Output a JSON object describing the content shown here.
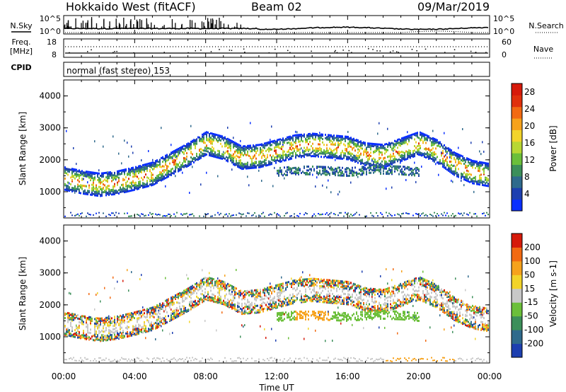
{
  "header": {
    "station": "Hokkaido West (fitACF)",
    "beam": "Beam 02",
    "date": "09/Mar/2019"
  },
  "noise_panel": {
    "left_label": "N.Sky",
    "right_label": "N.Search",
    "ticks_left": [
      "10^5",
      "10^0"
    ],
    "ticks_right": [
      "10^5",
      "10^0"
    ]
  },
  "freq_panel": {
    "left_label_1": "Freq.",
    "left_label_2": "[MHz]",
    "right_label": "Nave",
    "ticks_left": [
      "18",
      "8"
    ],
    "ticks_right": [
      "60",
      "0"
    ]
  },
  "cpid_panel": {
    "left_label": "CPID",
    "program": "normal (fast stereo) 153"
  },
  "chart_data": [
    {
      "type": "heatmap",
      "name": "Power",
      "xlabel": "",
      "ylabel": "Slant Range [km]",
      "colorbar_label": "Power [dB]",
      "x_range_hours": [
        0,
        24
      ],
      "y_range_km": [
        180,
        4500
      ],
      "y_ticks": [
        1000,
        2000,
        3000,
        4000
      ],
      "colorbar_ticks": [
        "4",
        "8",
        "12",
        "16",
        "20",
        "24",
        "28"
      ],
      "colorbar_colors": [
        "#0a2fff",
        "#1d3fb0",
        "#2f6a8c",
        "#3c8f5a",
        "#6bbf3a",
        "#b8d733",
        "#f2d42a",
        "#f6a21c",
        "#f26a12",
        "#e0300c",
        "#d61a0a"
      ],
      "echo_bands_km": [
        {
          "hours": [
            0,
            24
          ],
          "center": [
            1450,
            1330,
            1250,
            1320,
            1450,
            1600,
            1900,
            2200,
            2550,
            2400,
            2100,
            2150,
            2300,
            2450,
            2500,
            2450,
            2400,
            2200,
            2150,
            2350,
            2550,
            2300,
            1900,
            1650,
            1550
          ]
        },
        {
          "hours": [
            12,
            20
          ],
          "center": [
            1650,
            1700,
            1700,
            1680,
            1650,
            1700,
            1720,
            1700,
            1650
          ]
        }
      ]
    },
    {
      "type": "heatmap",
      "name": "Velocity",
      "xlabel": "Time UT",
      "ylabel": "Slant Range [km]",
      "colorbar_label": "Velocity [m s-1]",
      "x_range_hours": [
        0,
        24
      ],
      "y_range_km": [
        180,
        4500
      ],
      "y_ticks": [
        1000,
        2000,
        3000,
        4000
      ],
      "x_ticks": [
        "00:00",
        "04:00",
        "08:00",
        "12:00",
        "16:00",
        "20:00",
        "00:00"
      ],
      "colorbar_ticks": [
        "200",
        "100",
        "50",
        "15",
        "-15",
        "-50",
        "-100",
        "-200"
      ],
      "colorbar_colors": [
        "#1d3fb0",
        "#2f6a8c",
        "#3c8f5a",
        "#6bbf3a",
        "#c8c8c8",
        "#f2d42a",
        "#f6a21c",
        "#f26a12",
        "#d61a0a"
      ]
    }
  ],
  "colors": {
    "axis": "#000000",
    "ground_scatter": "#c8c8c8"
  }
}
